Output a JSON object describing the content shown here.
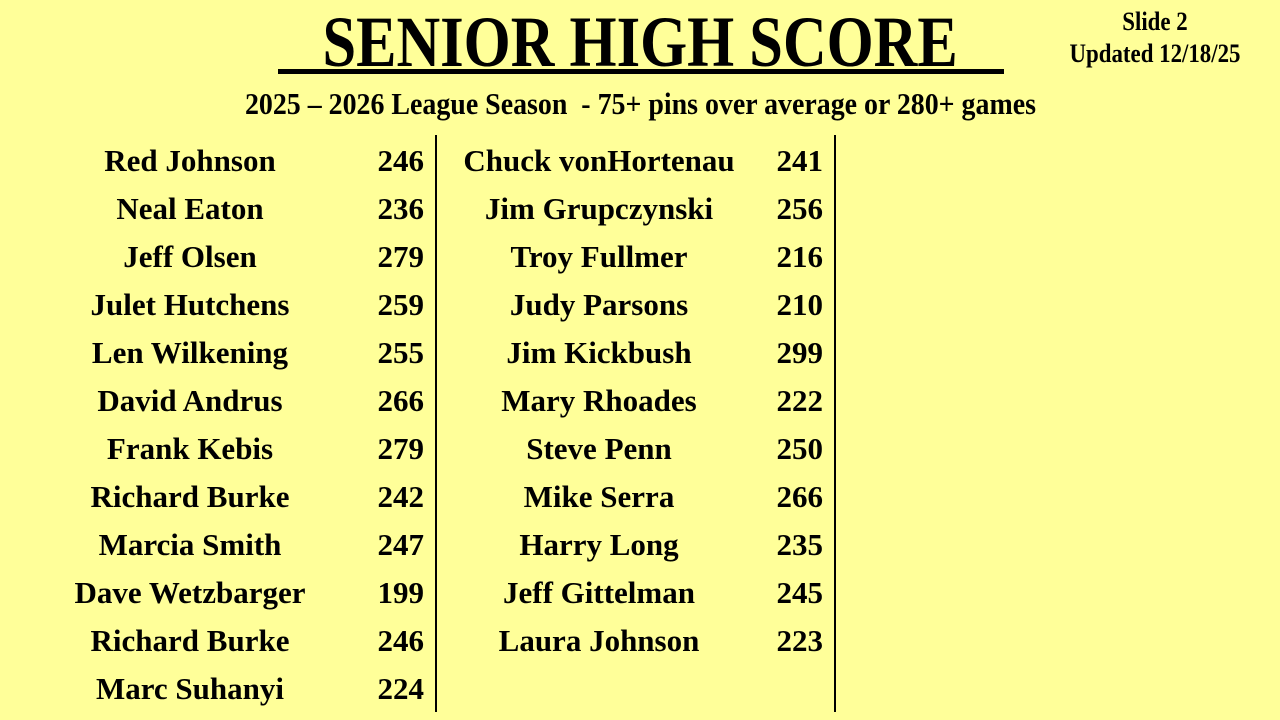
{
  "title": "SENIOR HIGH SCORE",
  "slide": "Slide 2",
  "updated": "Updated 12/18/25",
  "subtitle": "2025 – 2026 League Season  - 75+ pins over average or 280+ games",
  "colors": {
    "background": "#FFFF99",
    "text": "#000000"
  },
  "columns": [
    [
      {
        "name": "Red Johnson",
        "score": "246"
      },
      {
        "name": "Neal Eaton",
        "score": "236"
      },
      {
        "name": "Jeff Olsen",
        "score": "279"
      },
      {
        "name": "Julet Hutchens",
        "score": "259"
      },
      {
        "name": "Len Wilkening",
        "score": "255"
      },
      {
        "name": "David Andrus",
        "score": "266"
      },
      {
        "name": "Frank Kebis",
        "score": "279"
      },
      {
        "name": "Richard Burke",
        "score": "242"
      },
      {
        "name": "Marcia Smith",
        "score": "247"
      },
      {
        "name": "Dave Wetzbarger",
        "score": "199"
      },
      {
        "name": "Richard Burke",
        "score": "246"
      },
      {
        "name": "Marc Suhanyi",
        "score": "224"
      }
    ],
    [
      {
        "name": "Chuck vonHortenau",
        "score": "241"
      },
      {
        "name": "Jim Grupczynski",
        "score": "256"
      },
      {
        "name": "Troy Fullmer",
        "score": "216"
      },
      {
        "name": "Judy Parsons",
        "score": "210"
      },
      {
        "name": "Jim Kickbush",
        "score": "299"
      },
      {
        "name": "Mary Rhoades",
        "score": "222"
      },
      {
        "name": "Steve Penn",
        "score": "250"
      },
      {
        "name": "Mike Serra",
        "score": "266"
      },
      {
        "name": "Harry Long",
        "score": "235"
      },
      {
        "name": "Jeff Gittelman",
        "score": "245"
      },
      {
        "name": "Laura Johnson",
        "score": "223"
      }
    ]
  ]
}
